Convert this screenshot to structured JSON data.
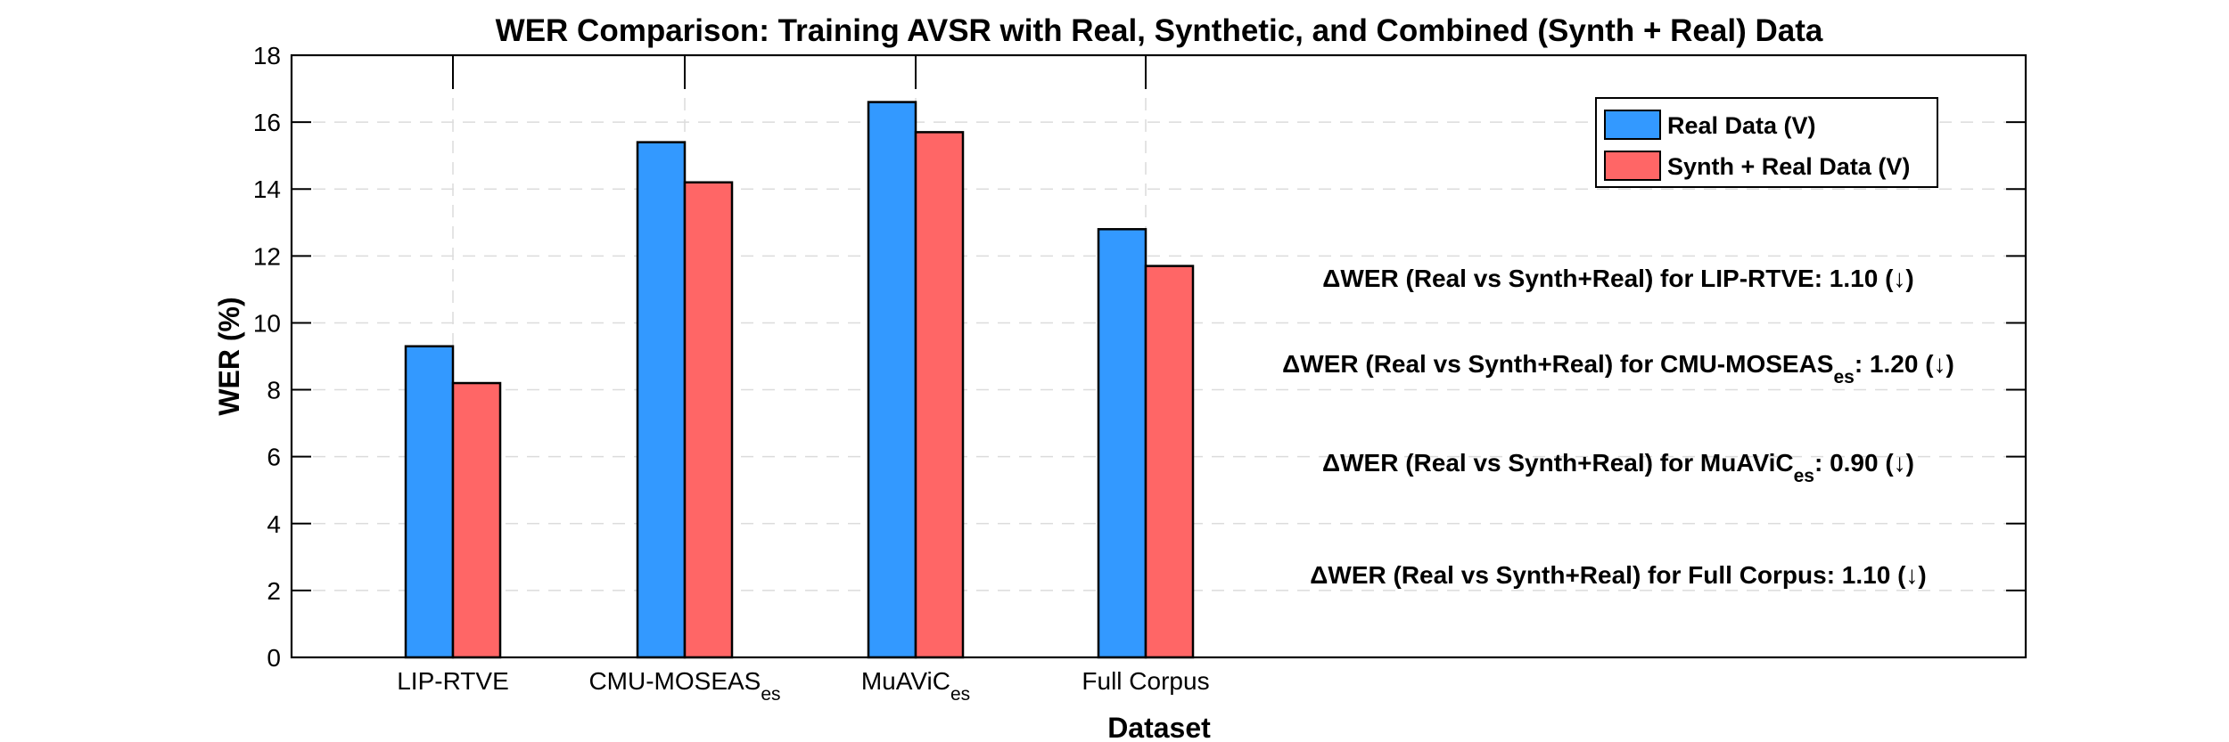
{
  "chart_data": {
    "type": "bar",
    "title": "WER Comparison: Training AVSR with Real, Synthetic, and Combined (Synth + Real) Data",
    "xlabel": "Dataset",
    "ylabel": "WER (%)",
    "ylim": [
      0,
      18
    ],
    "yticks": [
      0,
      2,
      4,
      6,
      8,
      10,
      12,
      14,
      16,
      18
    ],
    "grid": true,
    "legend_position": "top-right",
    "categories": [
      {
        "main": "LIP-RTVE",
        "sub": ""
      },
      {
        "main": "CMU-MOSEAS",
        "sub": "es"
      },
      {
        "main": "MuAViC",
        "sub": "es"
      },
      {
        "main": "Full Corpus",
        "sub": ""
      }
    ],
    "series": [
      {
        "name": "Real Data (V)",
        "color": "#3399ff",
        "values": [
          9.3,
          15.4,
          16.6,
          12.8
        ]
      },
      {
        "name": "Synth + Real Data (V)",
        "color": "#ff6666",
        "values": [
          8.2,
          14.2,
          15.7,
          11.7
        ]
      }
    ],
    "annotations": [
      {
        "pre": "ΔWER (Real vs Synth+Real) for LIP-RTVE: 1.10 (↓)",
        "sub": "",
        "post": ""
      },
      {
        "pre": "ΔWER (Real vs Synth+Real) for CMU-MOSEAS",
        "sub": "es",
        "post": ": 1.20 (↓)"
      },
      {
        "pre": "ΔWER (Real vs Synth+Real) for MuAViC",
        "sub": "es",
        "post": ": 0.90 (↓)"
      },
      {
        "pre": "ΔWER (Real vs Synth+Real) for Full Corpus: 1.10 (↓)",
        "sub": "",
        "post": ""
      }
    ]
  }
}
